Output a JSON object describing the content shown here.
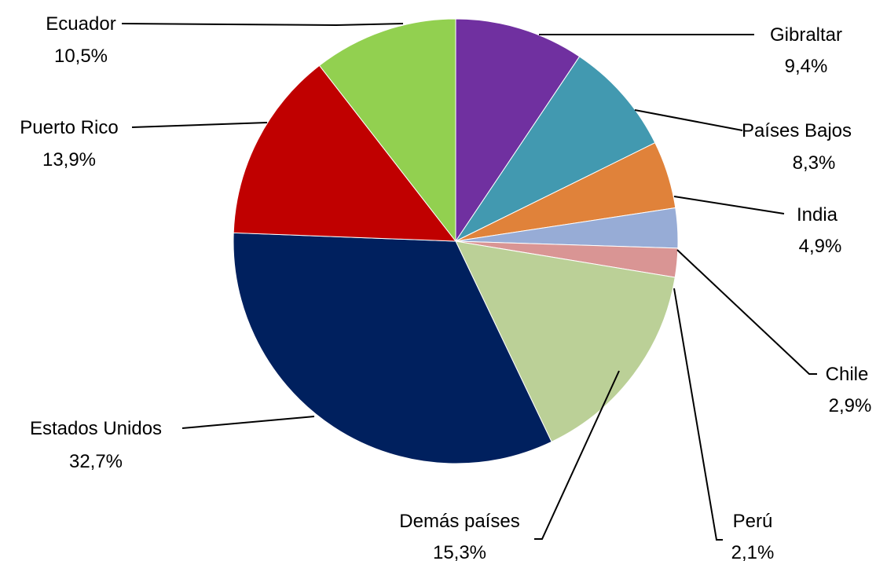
{
  "chart_data": {
    "type": "pie",
    "title": "",
    "slices": [
      {
        "label": "Gibraltar",
        "value": 9.4,
        "value_text": "9,4%",
        "color": "#7030A0"
      },
      {
        "label": "Países Bajos",
        "value": 8.3,
        "value_text": "8,3%",
        "color": "#4299B0"
      },
      {
        "label": "India",
        "value": 4.9,
        "value_text": "4,9%",
        "color": "#E0823A"
      },
      {
        "label": "Chile",
        "value": 2.9,
        "value_text": "2,9%",
        "color": "#97ACD6"
      },
      {
        "label": "Perú",
        "value": 2.1,
        "value_text": "2,1%",
        "color": "#D99594"
      },
      {
        "label": "Demás países",
        "value": 15.3,
        "value_text": "15,3%",
        "color": "#BBD097"
      },
      {
        "label": "Estados Unidos",
        "value": 32.7,
        "value_text": "32,7%",
        "color": "#00205E"
      },
      {
        "label": "Puerto Rico",
        "value": 13.9,
        "value_text": "13,9%",
        "color": "#C00000"
      },
      {
        "label": "Ecuador",
        "value": 10.5,
        "value_text": "10,5%",
        "color": "#92D050"
      }
    ],
    "start_angle_deg": 0,
    "direction": "clockwise",
    "legend": "none",
    "data_labels": "outside-with-leader-lines"
  }
}
